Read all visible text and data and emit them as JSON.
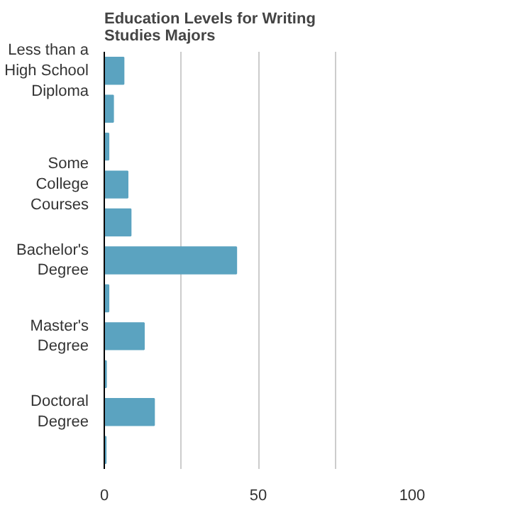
{
  "chart_data": {
    "type": "bar",
    "orientation": "horizontal",
    "title": "Education Levels for Writing Studies Majors",
    "categories": [
      "Less than a High School Diploma",
      null,
      null,
      "Some College Courses",
      null,
      "Bachelor's Degree",
      null,
      "Master's Degree",
      null,
      "Doctoral Degree",
      null
    ],
    "values": [
      6.3,
      2.9,
      1.4,
      7.6,
      8.6,
      42.9,
      1.4,
      12.9,
      0.6,
      16.2,
      0.5
    ],
    "color": "#5ba3c0",
    "xlim": [
      0,
      100
    ],
    "xticks": [
      0,
      {
        "value": 25,
        "label": null
      },
      50,
      {
        "value": 75,
        "label": null
      },
      100
    ],
    "grid": "x"
  }
}
